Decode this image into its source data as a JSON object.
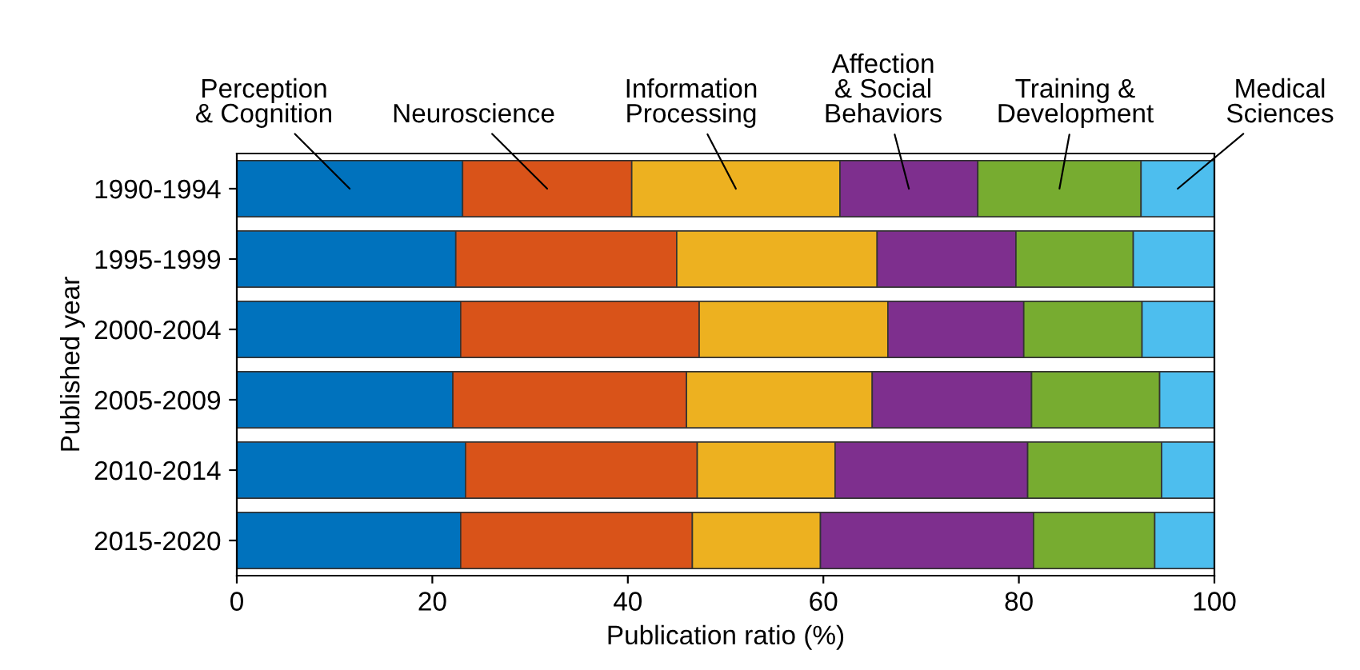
{
  "chart_data": {
    "type": "bar",
    "orientation": "horizontal",
    "stacked": true,
    "legend": false,
    "grid": false,
    "xlabel": "Publication ratio (%)",
    "ylabel": "Published year",
    "categories": [
      "1990-1994",
      "1995-1999",
      "2000-2004",
      "2005-2009",
      "2010-2014",
      "2015-2020"
    ],
    "xlim": [
      0,
      100
    ],
    "xticks": [
      0,
      20,
      40,
      60,
      80,
      100
    ],
    "series": [
      {
        "name": "Perception\n& Cognition",
        "color": "#0072bd",
        "values": [
          23.1,
          22.4,
          22.9,
          22.1,
          23.4,
          22.9
        ]
      },
      {
        "name": "Neuroscience",
        "color": "#d95319",
        "values": [
          17.3,
          22.6,
          24.4,
          23.9,
          23.7,
          23.7
        ]
      },
      {
        "name": "Information\nProcessing",
        "color": "#edb120",
        "values": [
          21.3,
          20.5,
          19.3,
          19.0,
          14.1,
          13.1
        ]
      },
      {
        "name": "Affection\n& Social\nBehaviors",
        "color": "#7e2f8e",
        "values": [
          14.1,
          14.2,
          13.9,
          16.3,
          19.7,
          21.8
        ]
      },
      {
        "name": "Training &\nDevelopment",
        "color": "#77ac30",
        "values": [
          16.7,
          12.0,
          12.1,
          13.1,
          13.7,
          12.4
        ]
      },
      {
        "name": "Medical\nSciences",
        "color": "#4dbeee",
        "values": [
          7.5,
          8.3,
          7.4,
          5.6,
          5.4,
          6.1
        ]
      }
    ]
  }
}
